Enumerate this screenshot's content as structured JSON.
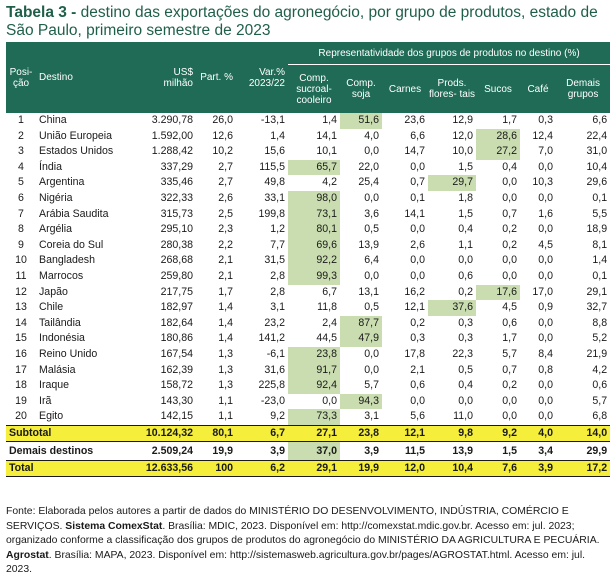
{
  "title": {
    "prefix": "Tabela 3 -",
    "text": "destino das exportações do agronegócio, por grupo de produtos, estado de São Paulo, primeiro semestre de 2023"
  },
  "header": {
    "posicao": "Posi- ção",
    "destino": "Destino",
    "usd": "US$ milhão",
    "part": "Part. %",
    "var": "Var.% 2023/22",
    "group": "Representatividade dos grupos de produtos no destino (%)",
    "products": [
      "Comp. sucroal- cooleiro",
      "Comp. soja",
      "Carnes",
      "Prods. flores- tais",
      "Sucos",
      "Café",
      "Demais grupos"
    ]
  },
  "rows": [
    {
      "pos": "1",
      "dest": "China",
      "usd": "3.290,78",
      "part": "26,0",
      "var": "-13,1",
      "v": [
        "1,4",
        "51,6",
        "23,6",
        "12,9",
        "1,7",
        "0,3",
        "6,6"
      ],
      "hl": 1
    },
    {
      "pos": "2",
      "dest": "União Europeia",
      "usd": "1.592,00",
      "part": "12,6",
      "var": "1,4",
      "v": [
        "14,1",
        "4,0",
        "6,6",
        "12,0",
        "28,6",
        "12,4",
        "22,4"
      ],
      "hl": 4
    },
    {
      "pos": "3",
      "dest": "Estados Unidos",
      "usd": "1.288,42",
      "part": "10,2",
      "var": "15,6",
      "v": [
        "10,1",
        "0,0",
        "14,7",
        "10,0",
        "27,2",
        "7,0",
        "31,0"
      ],
      "hl": 4
    },
    {
      "pos": "4",
      "dest": "Índia",
      "usd": "337,29",
      "part": "2,7",
      "var": "115,5",
      "v": [
        "65,7",
        "22,0",
        "0,0",
        "1,5",
        "0,4",
        "0,0",
        "10,4"
      ],
      "hl": 0
    },
    {
      "pos": "5",
      "dest": "Argentina",
      "usd": "335,46",
      "part": "2,7",
      "var": "49,8",
      "v": [
        "4,2",
        "25,4",
        "0,7",
        "29,7",
        "0,0",
        "10,3",
        "29,6"
      ],
      "hl": 3
    },
    {
      "pos": "6",
      "dest": "Nigéria",
      "usd": "322,33",
      "part": "2,6",
      "var": "33,1",
      "v": [
        "98,0",
        "0,0",
        "0,1",
        "1,8",
        "0,0",
        "0,0",
        "0,1"
      ],
      "hl": 0
    },
    {
      "pos": "7",
      "dest": "Arábia Saudita",
      "usd": "315,73",
      "part": "2,5",
      "var": "199,8",
      "v": [
        "73,1",
        "3,6",
        "14,1",
        "1,5",
        "0,7",
        "1,6",
        "5,5"
      ],
      "hl": 0
    },
    {
      "pos": "8",
      "dest": "Argélia",
      "usd": "295,10",
      "part": "2,3",
      "var": "1,2",
      "v": [
        "80,1",
        "0,5",
        "0,0",
        "0,4",
        "0,2",
        "0,0",
        "18,9"
      ],
      "hl": 0
    },
    {
      "pos": "9",
      "dest": "Coreia do Sul",
      "usd": "280,38",
      "part": "2,2",
      "var": "7,7",
      "v": [
        "69,6",
        "13,9",
        "2,6",
        "1,1",
        "0,2",
        "4,5",
        "8,1"
      ],
      "hl": 0
    },
    {
      "pos": "10",
      "dest": "Bangladesh",
      "usd": "268,68",
      "part": "2,1",
      "var": "31,5",
      "v": [
        "92,2",
        "6,4",
        "0,0",
        "0,0",
        "0,0",
        "0,0",
        "1,4"
      ],
      "hl": 0
    },
    {
      "pos": "11",
      "dest": "Marrocos",
      "usd": "259,80",
      "part": "2,1",
      "var": "2,8",
      "v": [
        "99,3",
        "0,0",
        "0,0",
        "0,6",
        "0,0",
        "0,0",
        "0,1"
      ],
      "hl": 0
    },
    {
      "pos": "12",
      "dest": "Japão",
      "usd": "217,75",
      "part": "1,7",
      "var": "2,8",
      "v": [
        "6,7",
        "13,1",
        "16,2",
        "0,2",
        "17,6",
        "17,0",
        "29,1"
      ],
      "hl": 4
    },
    {
      "pos": "13",
      "dest": "Chile",
      "usd": "182,97",
      "part": "1,4",
      "var": "3,1",
      "v": [
        "11,8",
        "0,5",
        "12,1",
        "37,6",
        "4,5",
        "0,9",
        "32,7"
      ],
      "hl": 3
    },
    {
      "pos": "14",
      "dest": "Tailândia",
      "usd": "182,64",
      "part": "1,4",
      "var": "23,2",
      "v": [
        "2,4",
        "87,7",
        "0,2",
        "0,3",
        "0,6",
        "0,0",
        "8,8"
      ],
      "hl": 1
    },
    {
      "pos": "15",
      "dest": "Indonésia",
      "usd": "180,86",
      "part": "1,4",
      "var": "141,2",
      "v": [
        "44,5",
        "47,9",
        "0,3",
        "0,3",
        "1,7",
        "0,0",
        "5,2"
      ],
      "hl": 1
    },
    {
      "pos": "16",
      "dest": "Reino Unido",
      "usd": "167,54",
      "part": "1,3",
      "var": "-6,1",
      "v": [
        "23,8",
        "0,0",
        "17,8",
        "22,3",
        "5,7",
        "8,4",
        "21,9"
      ],
      "hl": 0
    },
    {
      "pos": "17",
      "dest": "Malásia",
      "usd": "162,39",
      "part": "1,3",
      "var": "31,6",
      "v": [
        "91,7",
        "0,0",
        "2,1",
        "0,5",
        "0,7",
        "0,8",
        "4,2"
      ],
      "hl": 0
    },
    {
      "pos": "18",
      "dest": "Iraque",
      "usd": "158,72",
      "part": "1,3",
      "var": "225,8",
      "v": [
        "92,4",
        "5,7",
        "0,6",
        "0,4",
        "0,2",
        "0,0",
        "0,6"
      ],
      "hl": 0
    },
    {
      "pos": "19",
      "dest": "Irã",
      "usd": "143,30",
      "part": "1,1",
      "var": "-23,0",
      "v": [
        "0,0",
        "94,3",
        "0,0",
        "0,0",
        "0,0",
        "0,0",
        "5,7"
      ],
      "hl": 1
    },
    {
      "pos": "20",
      "dest": "Egito",
      "usd": "142,15",
      "part": "1,1",
      "var": "9,2",
      "v": [
        "73,3",
        "3,1",
        "5,6",
        "11,0",
        "0,0",
        "0,0",
        "6,8"
      ],
      "hl": 0
    }
  ],
  "subtotal": {
    "label": "Subtotal",
    "usd": "10.124,32",
    "part": "80,1",
    "var": "6,7",
    "v": [
      "27,1",
      "23,8",
      "12,1",
      "9,8",
      "9,2",
      "4,0",
      "14,0"
    ]
  },
  "demais": {
    "label": "Demais destinos",
    "usd": "2.509,24",
    "part": "19,9",
    "var": "3,9",
    "v": [
      "37,0",
      "3,9",
      "11,5",
      "13,9",
      "1,5",
      "3,4",
      "29,9"
    ],
    "hl": 0
  },
  "total": {
    "label": "Total",
    "usd": "12.633,56",
    "part": "100",
    "var": "6,2",
    "v": [
      "29,1",
      "19,9",
      "12,0",
      "10,4",
      "7,6",
      "3,9",
      "17,2"
    ]
  },
  "source": {
    "line1": "Fonte: Elaborada pelos autores a partir de dados do MINISTÉRIO DO DESENVOLVIMENTO, INDÚSTRIA, COMÉRCIO E SERVIÇOS.",
    "comex_bold": "Sistema ComexStat",
    "line2": ". Brasília: MDIC, 2023. Disponível em: http://comexstat.mdic.gov.br. Acesso em: jul. 2023; organizado conforme a classificação dos grupos de produtos do agronegócio do MINISTÉRIO DA AGRICULTURA E PECUÁRIA.",
    "agrostat_bold": "Agrostat",
    "line3": ". Brasília: MAPA, 2023. Disponível em: http://sistemasweb.agricultura.gov.br/pages/AGROSTAT.html. Acesso em: jul. 2023."
  },
  "colors": {
    "header": "#1f6b55",
    "highlight": "#c9ddb0",
    "subtotal": "#f5ee3a",
    "title": "#1f5f4a"
  }
}
